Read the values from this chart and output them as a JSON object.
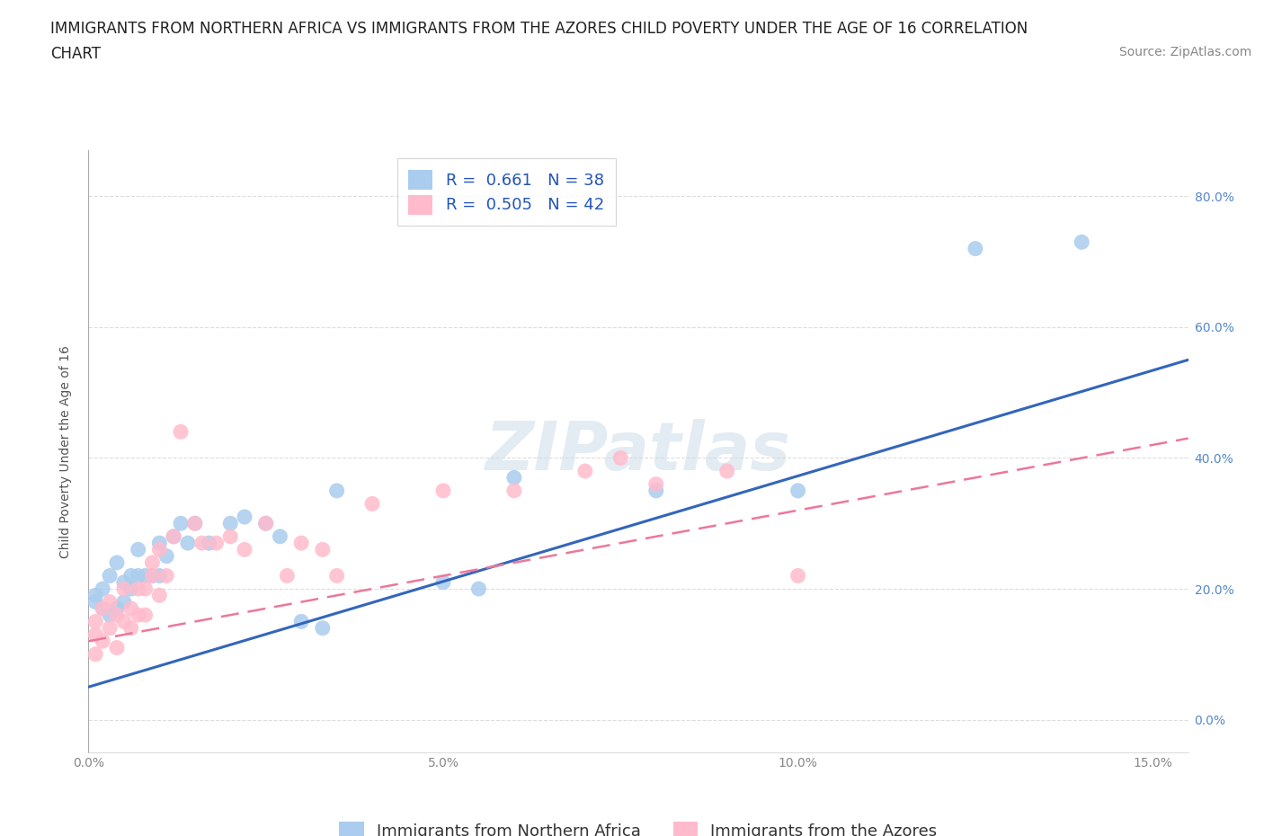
{
  "title_line1": "IMMIGRANTS FROM NORTHERN AFRICA VS IMMIGRANTS FROM THE AZORES CHILD POVERTY UNDER THE AGE OF 16 CORRELATION",
  "title_line2": "CHART",
  "source_text": "Source: ZipAtlas.com",
  "ylabel": "Child Poverty Under the Age of 16",
  "xlim": [
    0.0,
    0.155
  ],
  "ylim": [
    -0.05,
    0.87
  ],
  "xticks": [
    0.0,
    0.05,
    0.1,
    0.15
  ],
  "xticklabels": [
    "0.0%",
    "5.0%",
    "10.0%",
    "15.0%"
  ],
  "yticks": [
    0.0,
    0.2,
    0.4,
    0.6,
    0.8
  ],
  "yticklabels": [
    "0.0%",
    "20.0%",
    "40.0%",
    "60.0%",
    "80.0%"
  ],
  "watermark": "ZIPatlas",
  "blue_color": "#aaccee",
  "pink_color": "#ffbbcc",
  "blue_line_color": "#3366bb",
  "pink_line_color": "#ee7799",
  "blue_r": 0.661,
  "blue_n": 38,
  "pink_r": 0.505,
  "pink_n": 42,
  "legend_label_blue": "Immigrants from Northern Africa",
  "legend_label_pink": "Immigrants from the Azores",
  "blue_scatter_x": [
    0.001,
    0.001,
    0.002,
    0.002,
    0.003,
    0.003,
    0.004,
    0.004,
    0.005,
    0.005,
    0.006,
    0.006,
    0.007,
    0.007,
    0.008,
    0.009,
    0.01,
    0.01,
    0.011,
    0.012,
    0.013,
    0.014,
    0.015,
    0.017,
    0.02,
    0.022,
    0.025,
    0.027,
    0.03,
    0.033,
    0.035,
    0.05,
    0.055,
    0.06,
    0.08,
    0.1,
    0.125,
    0.14
  ],
  "blue_scatter_y": [
    0.18,
    0.19,
    0.17,
    0.2,
    0.16,
    0.22,
    0.17,
    0.24,
    0.18,
    0.21,
    0.2,
    0.22,
    0.22,
    0.26,
    0.22,
    0.22,
    0.22,
    0.27,
    0.25,
    0.28,
    0.3,
    0.27,
    0.3,
    0.27,
    0.3,
    0.31,
    0.3,
    0.28,
    0.15,
    0.14,
    0.35,
    0.21,
    0.2,
    0.37,
    0.35,
    0.35,
    0.72,
    0.73
  ],
  "pink_scatter_x": [
    0.001,
    0.001,
    0.001,
    0.002,
    0.002,
    0.003,
    0.003,
    0.004,
    0.004,
    0.005,
    0.005,
    0.006,
    0.006,
    0.007,
    0.007,
    0.008,
    0.008,
    0.009,
    0.009,
    0.01,
    0.01,
    0.011,
    0.012,
    0.013,
    0.015,
    0.016,
    0.018,
    0.02,
    0.022,
    0.025,
    0.028,
    0.03,
    0.033,
    0.035,
    0.04,
    0.05,
    0.06,
    0.07,
    0.075,
    0.08,
    0.09,
    0.1
  ],
  "pink_scatter_y": [
    0.1,
    0.13,
    0.15,
    0.12,
    0.17,
    0.14,
    0.18,
    0.11,
    0.16,
    0.15,
    0.2,
    0.14,
    0.17,
    0.16,
    0.2,
    0.2,
    0.16,
    0.22,
    0.24,
    0.19,
    0.26,
    0.22,
    0.28,
    0.44,
    0.3,
    0.27,
    0.27,
    0.28,
    0.26,
    0.3,
    0.22,
    0.27,
    0.26,
    0.22,
    0.33,
    0.35,
    0.35,
    0.38,
    0.4,
    0.36,
    0.38,
    0.22
  ],
  "grid_color": "#dddddd",
  "background_color": "#ffffff",
  "title_fontsize": 12,
  "axis_label_fontsize": 10,
  "tick_fontsize": 10,
  "legend_fontsize": 13,
  "source_fontsize": 10,
  "legend_text_color": "#2255bb"
}
